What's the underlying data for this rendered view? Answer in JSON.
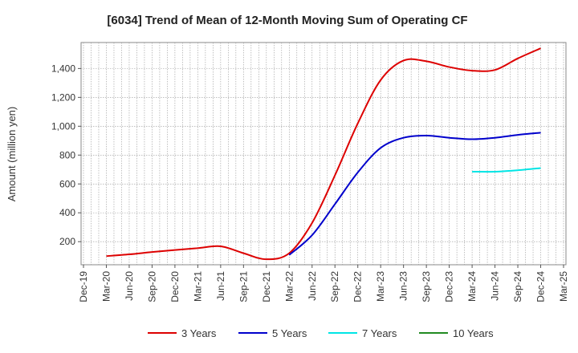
{
  "chart_data": {
    "type": "line",
    "title": "[6034]  Trend of Mean of 12-Month Moving Sum of Operating CF",
    "xlabel": "",
    "ylabel": "Amount (million yen)",
    "ylim": [
      40,
      1580
    ],
    "yticks": [
      200,
      400,
      600,
      800,
      1000,
      1200,
      1400
    ],
    "ytick_labels": [
      "200",
      "400",
      "600",
      "800",
      "1,000",
      "1,200",
      "1,400"
    ],
    "categories": [
      "Dec-19",
      "Mar-20",
      "Jun-20",
      "Sep-20",
      "Dec-20",
      "Mar-21",
      "Jun-21",
      "Sep-21",
      "Dec-21",
      "Mar-22",
      "Jun-22",
      "Sep-22",
      "Dec-22",
      "Mar-23",
      "Jun-23",
      "Sep-23",
      "Dec-23",
      "Mar-24",
      "Jun-24",
      "Sep-24",
      "Dec-24",
      "Mar-25"
    ],
    "grid": true,
    "legend_position": "bottom",
    "series": [
      {
        "name": "3 Years",
        "color": "#dd0000",
        "values": [
          null,
          100,
          112,
          128,
          142,
          155,
          168,
          120,
          78,
          120,
          330,
          660,
          1020,
          1320,
          1455,
          1450,
          1410,
          1385,
          1390,
          1470,
          1540,
          null
        ]
      },
      {
        "name": "5 Years",
        "color": "#0000cc",
        "values": [
          null,
          null,
          null,
          null,
          null,
          null,
          null,
          null,
          null,
          108,
          245,
          460,
          680,
          850,
          920,
          935,
          920,
          910,
          920,
          940,
          955,
          null
        ]
      },
      {
        "name": "7 Years",
        "color": "#00e5e5",
        "values": [
          null,
          null,
          null,
          null,
          null,
          null,
          null,
          null,
          null,
          null,
          null,
          null,
          null,
          null,
          null,
          null,
          null,
          685,
          685,
          695,
          710,
          null
        ]
      },
      {
        "name": "10 Years",
        "color": "#228b22",
        "values": [
          null,
          null,
          null,
          null,
          null,
          null,
          null,
          null,
          null,
          null,
          null,
          null,
          null,
          null,
          null,
          null,
          null,
          null,
          null,
          null,
          null,
          null
        ]
      }
    ]
  }
}
